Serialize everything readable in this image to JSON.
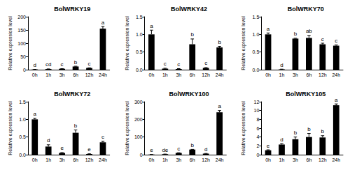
{
  "chart_data": [
    {
      "type": "bar",
      "title": "BolWRKY19",
      "y_label": "Relative expression level",
      "color": "#000000",
      "categories": [
        "0h",
        "1h",
        "3h",
        "6h",
        "12h",
        "24h"
      ],
      "values": [
        1,
        2.5,
        3.5,
        12,
        6.5,
        155
      ],
      "errors": [
        0.1,
        0.3,
        0.3,
        1,
        0.5,
        8
      ],
      "annotations": [
        "d",
        "cd",
        "c",
        "b",
        "c",
        "a"
      ],
      "ylim": [
        0,
        200
      ],
      "yticks": [
        0,
        50,
        100,
        150,
        200
      ],
      "grid": false
    },
    {
      "type": "bar",
      "title": "BolWRKY42",
      "y_label": "Relative expression level",
      "color": "#000000",
      "categories": [
        "0h",
        "1h",
        "3h",
        "6h",
        "12h",
        "24h"
      ],
      "values": [
        1.0,
        0.03,
        0.02,
        0.72,
        0.05,
        0.63
      ],
      "errors": [
        0.12,
        0.01,
        0.01,
        0.15,
        0.01,
        0.03
      ],
      "annotations": [
        "a",
        "c",
        "c",
        "b",
        "c",
        "b"
      ],
      "ylim": [
        0,
        1.5
      ],
      "yticks": [
        {
          "value": 0,
          "label": "0.0"
        },
        {
          "value": 0.5,
          "label": "0.5"
        },
        {
          "value": 1,
          "label": "1.0"
        },
        {
          "value": 1.5,
          "label": "1.5"
        }
      ],
      "grid": false
    },
    {
      "type": "bar",
      "title": "BolWRKY70",
      "y_label": "Relative expression level",
      "color": "#000000",
      "categories": [
        "0h",
        "1h",
        "3h",
        "6h",
        "12h",
        "24h"
      ],
      "values": [
        1.0,
        0.01,
        0.88,
        0.9,
        0.72,
        0.68
      ],
      "errors": [
        0.04,
        0.005,
        0.01,
        0.07,
        0.03,
        0.02
      ],
      "annotations": [
        "a",
        "d",
        "b",
        "ab",
        "c",
        "c"
      ],
      "ylim": [
        0,
        1.5
      ],
      "yticks": [
        {
          "value": 0,
          "label": "0.0"
        },
        {
          "value": 0.5,
          "label": "0.5"
        },
        {
          "value": 1,
          "label": "1.0"
        },
        {
          "value": 1.5,
          "label": "1.5"
        }
      ],
      "grid": false
    },
    {
      "type": "bar",
      "title": "BolWRKY72",
      "y_label": "Relative expression level",
      "color": "#000000",
      "categories": [
        "0h",
        "1h",
        "3h",
        "6h",
        "12h",
        "24h"
      ],
      "values": [
        1.0,
        0.23,
        0.05,
        0.62,
        0.02,
        0.35
      ],
      "errors": [
        0.03,
        0.05,
        0.01,
        0.08,
        0.005,
        0.03
      ],
      "annotations": [
        "a",
        "d",
        "e",
        "b",
        "e",
        "c"
      ],
      "ylim": [
        0,
        1.5
      ],
      "yticks": [
        {
          "value": 0,
          "label": "0.0"
        },
        {
          "value": 0.5,
          "label": "0.5"
        },
        {
          "value": 1,
          "label": "1.0"
        },
        {
          "value": 1.5,
          "label": "1.5"
        }
      ],
      "grid": false
    },
    {
      "type": "bar",
      "title": "BolWRKY100",
      "y_label": "Relative expression level",
      "color": "#000000",
      "categories": [
        "0h",
        "1h",
        "3h",
        "6h",
        "12h",
        "24h"
      ],
      "values": [
        1,
        3,
        10,
        29,
        6,
        240
      ],
      "errors": [
        0.2,
        0.5,
        1,
        1,
        1,
        10
      ],
      "annotations": [
        "e",
        "de",
        "c",
        "b",
        "d",
        "a"
      ],
      "ylim": [
        0,
        300
      ],
      "yticks": [
        0,
        100,
        200,
        300
      ],
      "grid": false
    },
    {
      "type": "bar",
      "title": "BolWRKY105",
      "y_label": "Relative expression level",
      "color": "#000000",
      "categories": [
        "0h",
        "1h",
        "3h",
        "6h",
        "12h",
        "24h"
      ],
      "values": [
        1,
        2.3,
        3.5,
        4,
        3.9,
        11.2
      ],
      "errors": [
        0.1,
        0.2,
        0.5,
        0.8,
        0.4,
        0.3
      ],
      "annotations": [
        "e",
        "d",
        "b",
        "b",
        "b",
        "a"
      ],
      "ylim": [
        0,
        12
      ],
      "yticks": [
        0,
        2,
        4,
        6,
        8,
        10,
        12
      ],
      "grid": false
    }
  ]
}
